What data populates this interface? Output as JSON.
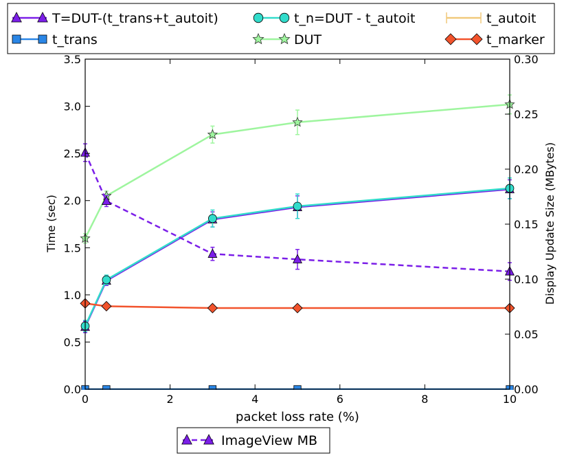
{
  "chart_data": {
    "type": "line",
    "xlabel": "packet loss rate (%)",
    "ylabel": "Time (sec)",
    "y2label": "Display Update Size (MBytes)",
    "xlim": [
      0,
      10
    ],
    "ylim": [
      0,
      3.5
    ],
    "y2lim": [
      0,
      0.3
    ],
    "xticks": [
      "0",
      "2",
      "4",
      "6",
      "8",
      "10"
    ],
    "yticks": [
      "0.0",
      "0.5",
      "1.0",
      "1.5",
      "2.0",
      "2.5",
      "3.0",
      "3.5"
    ],
    "y2ticks": [
      "0.00",
      "0.05",
      "0.10",
      "0.15",
      "0.20",
      "0.25",
      "0.30"
    ],
    "grid": false,
    "legend_top": [
      "T=DUT-(t_trans+t_autoit)",
      "t_n=DUT - t_autoit",
      "t_autoit",
      "t_trans",
      "DUT",
      "t_marker"
    ],
    "legend_bottom": [
      "ImageView MB"
    ],
    "series": [
      {
        "name": "T=DUT-(t_trans+t_autoit)",
        "axis": "left",
        "marker": "triangle",
        "color": "#7b1ee8",
        "dashed": false,
        "x": [
          0,
          0.5,
          3,
          5,
          10
        ],
        "y": [
          0.66,
          1.15,
          1.8,
          1.93,
          2.12
        ],
        "err": [
          0.06,
          0.05,
          0.08,
          0.12,
          0.1
        ]
      },
      {
        "name": "t_trans",
        "axis": "left",
        "marker": "square",
        "color": "#2a86e6",
        "dashed": false,
        "x": [
          0,
          0.5,
          3,
          5,
          10
        ],
        "y": [
          0.0,
          0.0,
          0.0,
          0.0,
          0.0
        ],
        "err": [
          0.02,
          0.02,
          0.02,
          0.02,
          0.02
        ]
      },
      {
        "name": "t_n=DUT - t_autoit",
        "axis": "left",
        "marker": "circle",
        "color": "#32dccb",
        "dashed": false,
        "x": [
          0,
          0.5,
          3,
          5,
          10
        ],
        "y": [
          0.67,
          1.16,
          1.81,
          1.94,
          2.13
        ],
        "err": [
          0.06,
          0.05,
          0.09,
          0.13,
          0.11
        ]
      },
      {
        "name": "DUT",
        "axis": "left",
        "marker": "star",
        "color": "#9ef59e",
        "dashed": false,
        "x": [
          0,
          0.5,
          3,
          5,
          10
        ],
        "y": [
          1.6,
          2.05,
          2.7,
          2.83,
          3.02
        ],
        "err": [
          0.05,
          0.05,
          0.09,
          0.13,
          0.1
        ]
      },
      {
        "name": "t_autoit",
        "axis": "left",
        "marker": "x",
        "color": "#f1c97b",
        "dashed": false,
        "x": [
          0,
          0.5,
          3,
          5,
          10
        ],
        "y": [
          0.0,
          0.0,
          0.0,
          0.0,
          0.0
        ],
        "err": [
          0.0,
          0.0,
          0.0,
          0.0,
          0.0
        ]
      },
      {
        "name": "t_marker",
        "axis": "left",
        "marker": "diamond",
        "color": "#f2532c",
        "dashed": false,
        "x": [
          0,
          0.5,
          3,
          5,
          10
        ],
        "y": [
          0.91,
          0.88,
          0.86,
          0.86,
          0.86
        ],
        "err": [
          0,
          0,
          0,
          0,
          0
        ]
      },
      {
        "name": "ImageView MB",
        "axis": "right",
        "marker": "triangle",
        "color": "#7b1ee8",
        "dashed": true,
        "x": [
          0,
          0.5,
          3,
          5,
          10
        ],
        "y": [
          0.215,
          0.171,
          0.123,
          0.118,
          0.107
        ],
        "err": [
          0.008,
          0.005,
          0.006,
          0.009,
          0.008
        ]
      }
    ]
  }
}
